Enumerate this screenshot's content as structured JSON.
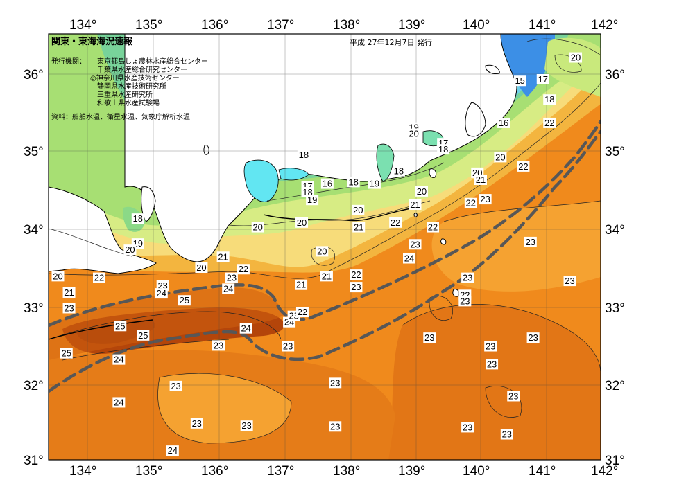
{
  "map": {
    "title": "関東・東海海況速報",
    "issue_date": "平成 27年12月7日 発行",
    "publishers_label": "発行機関：",
    "publishers": [
      "東京都島しょ農林水産総合センター",
      "千葉県水産総合研究センター",
      "◎神奈川県水産技術センター",
      "静岡県水産技術研究所",
      "三重県水産研究所",
      "和歌山県水産試験場"
    ],
    "sources": "資料：船舶水温、衛星水温、気象庁解析水温",
    "lon_ticks": [
      "134°",
      "135°",
      "136°",
      "137°",
      "138°",
      "139°",
      "140°",
      "141°",
      "142°"
    ],
    "lat_ticks": [
      "36°",
      "35°",
      "34°",
      "33°",
      "32°",
      "31°"
    ],
    "colors": {
      "frame": "#000000",
      "cold_15": "#2f7fe0",
      "cold_17": "#69c9f2",
      "mid_19": "#9fe07a",
      "mid_20": "#d8ee80",
      "warm_21": "#f6e58a",
      "warm_22": "#f5c74e",
      "warm_23": "#f39a28",
      "warm_24": "#e47c18",
      "hot_25": "#b8460a",
      "kuroshio_axis": "#555555"
    },
    "contour_labels": [
      {
        "v": "20",
        "lon": 141.45,
        "lat": 36.2
      },
      {
        "v": "15",
        "lon": 140.6,
        "lat": 35.9
      },
      {
        "v": "17",
        "lon": 140.95,
        "lat": 35.92
      },
      {
        "v": "18",
        "lon": 141.05,
        "lat": 35.66
      },
      {
        "v": "16",
        "lon": 140.35,
        "lat": 35.36
      },
      {
        "v": "22",
        "lon": 141.05,
        "lat": 35.36
      },
      {
        "v": "19",
        "lon": 138.98,
        "lat": 35.3
      },
      {
        "v": "20",
        "lon": 138.98,
        "lat": 35.22
      },
      {
        "v": "17",
        "lon": 139.43,
        "lat": 35.1
      },
      {
        "v": "18",
        "lon": 139.43,
        "lat": 35.02
      },
      {
        "v": "20",
        "lon": 140.3,
        "lat": 34.92
      },
      {
        "v": "22",
        "lon": 140.65,
        "lat": 34.8
      },
      {
        "v": "20",
        "lon": 139.95,
        "lat": 34.72
      },
      {
        "v": "21",
        "lon": 140.0,
        "lat": 34.63
      },
      {
        "v": "18",
        "lon": 137.3,
        "lat": 34.95
      },
      {
        "v": "18",
        "lon": 138.75,
        "lat": 34.74
      },
      {
        "v": "19",
        "lon": 138.38,
        "lat": 34.58
      },
      {
        "v": "16",
        "lon": 137.66,
        "lat": 34.58
      },
      {
        "v": "18",
        "lon": 138.06,
        "lat": 34.6
      },
      {
        "v": "17",
        "lon": 137.36,
        "lat": 34.55
      },
      {
        "v": "18",
        "lon": 137.36,
        "lat": 34.47
      },
      {
        "v": "19",
        "lon": 137.43,
        "lat": 34.37
      },
      {
        "v": "20",
        "lon": 139.1,
        "lat": 34.48
      },
      {
        "v": "22",
        "lon": 139.85,
        "lat": 34.33
      },
      {
        "v": "23",
        "lon": 140.07,
        "lat": 34.38
      },
      {
        "v": "21",
        "lon": 139.0,
        "lat": 34.31
      },
      {
        "v": "20",
        "lon": 138.13,
        "lat": 34.24
      },
      {
        "v": "20",
        "lon": 137.27,
        "lat": 34.08
      },
      {
        "v": "20",
        "lon": 136.6,
        "lat": 34.02
      },
      {
        "v": "21",
        "lon": 138.14,
        "lat": 34.02
      },
      {
        "v": "22",
        "lon": 138.7,
        "lat": 34.08
      },
      {
        "v": "22",
        "lon": 139.27,
        "lat": 34.02
      },
      {
        "v": "23",
        "lon": 139.0,
        "lat": 33.8
      },
      {
        "v": "18",
        "lon": 134.77,
        "lat": 34.13
      },
      {
        "v": "19",
        "lon": 134.77,
        "lat": 33.81
      },
      {
        "v": "20",
        "lon": 134.65,
        "lat": 33.73
      },
      {
        "v": "23",
        "lon": 140.76,
        "lat": 33.83
      },
      {
        "v": "20",
        "lon": 137.58,
        "lat": 33.71
      },
      {
        "v": "21",
        "lon": 136.07,
        "lat": 33.64
      },
      {
        "v": "24",
        "lon": 138.91,
        "lat": 33.62
      },
      {
        "v": "20",
        "lon": 133.55,
        "lat": 33.39
      },
      {
        "v": "22",
        "lon": 134.18,
        "lat": 33.37
      },
      {
        "v": "20",
        "lon": 135.74,
        "lat": 33.5
      },
      {
        "v": "22",
        "lon": 136.38,
        "lat": 33.48
      },
      {
        "v": "21",
        "lon": 137.65,
        "lat": 33.39
      },
      {
        "v": "22",
        "lon": 138.1,
        "lat": 33.41
      },
      {
        "v": "23",
        "lon": 139.8,
        "lat": 33.37
      },
      {
        "v": "23",
        "lon": 141.36,
        "lat": 33.33
      },
      {
        "v": "21",
        "lon": 133.72,
        "lat": 33.18
      },
      {
        "v": "23",
        "lon": 135.15,
        "lat": 33.27
      },
      {
        "v": "24",
        "lon": 135.13,
        "lat": 33.17
      },
      {
        "v": "23",
        "lon": 136.2,
        "lat": 33.37
      },
      {
        "v": "24",
        "lon": 136.15,
        "lat": 33.23
      },
      {
        "v": "21",
        "lon": 137.26,
        "lat": 33.28
      },
      {
        "v": "23",
        "lon": 138.1,
        "lat": 33.25
      },
      {
        "v": "22",
        "lon": 139.76,
        "lat": 33.15
      },
      {
        "v": "23",
        "lon": 139.76,
        "lat": 33.07
      },
      {
        "v": "25",
        "lon": 135.48,
        "lat": 33.08
      },
      {
        "v": "23",
        "lon": 133.72,
        "lat": 32.98
      },
      {
        "v": "25",
        "lon": 134.5,
        "lat": 32.75
      },
      {
        "v": "24",
        "lon": 136.42,
        "lat": 32.72
      },
      {
        "v": "24",
        "lon": 137.08,
        "lat": 32.8
      },
      {
        "v": "23",
        "lon": 137.15,
        "lat": 32.88
      },
      {
        "v": "22",
        "lon": 137.28,
        "lat": 32.93
      },
      {
        "v": "25",
        "lon": 134.85,
        "lat": 32.63
      },
      {
        "v": "23",
        "lon": 136.0,
        "lat": 32.5
      },
      {
        "v": "23",
        "lon": 137.06,
        "lat": 32.49
      },
      {
        "v": "23",
        "lon": 139.22,
        "lat": 32.6
      },
      {
        "v": "23",
        "lon": 140.15,
        "lat": 32.49
      },
      {
        "v": "23",
        "lon": 140.8,
        "lat": 32.6
      },
      {
        "v": "25",
        "lon": 133.68,
        "lat": 32.4
      },
      {
        "v": "24",
        "lon": 134.48,
        "lat": 32.32
      },
      {
        "v": "23",
        "lon": 140.17,
        "lat": 32.26
      },
      {
        "v": "23",
        "lon": 137.78,
        "lat": 32.02
      },
      {
        "v": "23",
        "lon": 135.35,
        "lat": 31.98
      },
      {
        "v": "24",
        "lon": 134.48,
        "lat": 31.77
      },
      {
        "v": "23",
        "lon": 140.5,
        "lat": 31.85
      },
      {
        "v": "23",
        "lon": 135.67,
        "lat": 31.5
      },
      {
        "v": "23",
        "lon": 136.43,
        "lat": 31.47
      },
      {
        "v": "23",
        "lon": 137.78,
        "lat": 31.46
      },
      {
        "v": "23",
        "lon": 139.8,
        "lat": 31.45
      },
      {
        "v": "23",
        "lon": 140.4,
        "lat": 31.36
      },
      {
        "v": "24",
        "lon": 135.3,
        "lat": 31.15
      }
    ]
  }
}
